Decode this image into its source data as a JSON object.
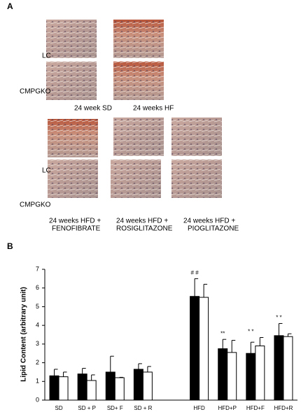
{
  "panels": {
    "a": {
      "label": "A",
      "row_labels": [
        "LC",
        "CMPGKO",
        "LC",
        "CMPGKO"
      ],
      "captions": [
        "24 week SD",
        "24 weeks HF",
        "24 weeks HFD +",
        "FENOFIBRATE",
        "24 weeks HFD +",
        "ROSIGLITAZONE",
        "24 weeks HFD +",
        "PIOGLITAZONE"
      ]
    },
    "b": {
      "label": "B"
    }
  },
  "chart_data": {
    "type": "bar",
    "y_label": "Lipid Content (arbitrary unit)",
    "categories": [
      "SD",
      "SD + P",
      "SD+ F",
      "SD + R",
      null,
      "HFD",
      "HFD+P",
      "HFD+F",
      "HFD+R"
    ],
    "series": [
      {
        "color": "#000000",
        "values": [
          1.3,
          1.4,
          1.5,
          1.65,
          null,
          5.55,
          2.75,
          2.5,
          3.45
        ],
        "errors": [
          0.35,
          0.3,
          0.85,
          0.3,
          null,
          0.95,
          0.5,
          0.6,
          0.65
        ]
      },
      {
        "color": "#ffffff",
        "values": [
          1.25,
          1.05,
          1.2,
          1.5,
          null,
          5.5,
          2.55,
          2.9,
          3.4
        ],
        "errors": [
          0.25,
          0.3,
          0.02,
          0.3,
          null,
          0.7,
          0.65,
          0.45,
          0.15
        ]
      }
    ],
    "annotations": [
      "# #",
      "**",
      "* *",
      "* *"
    ],
    "ylim": [
      0,
      7
    ],
    "yticks": [
      0,
      1,
      2,
      3,
      4,
      5,
      6,
      7
    ],
    "grid": false
  }
}
